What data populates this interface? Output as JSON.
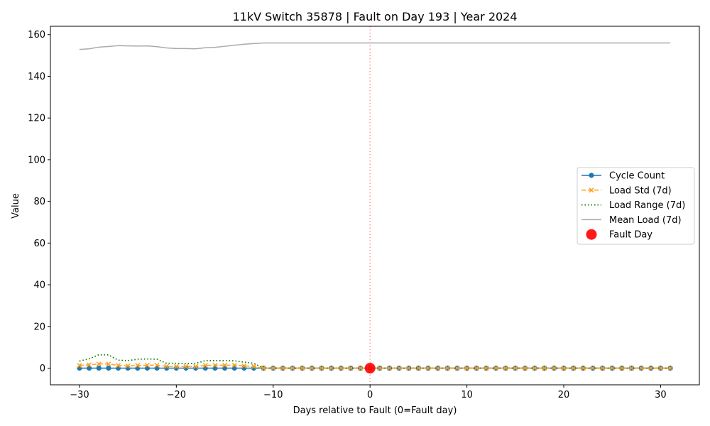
{
  "chart_data": {
    "type": "line",
    "title": "11kV Switch 35878 | Fault on Day 193 | Year 2024",
    "xlabel": "Days relative to Fault (0=Fault day)",
    "ylabel": "Value",
    "xlim": [
      -33,
      34
    ],
    "ylim": [
      -8,
      164
    ],
    "xticks": [
      -30,
      -20,
      -10,
      0,
      10,
      20,
      30
    ],
    "yticks": [
      0,
      20,
      40,
      60,
      80,
      100,
      120,
      140,
      160
    ],
    "grid": false,
    "legend_position": "center-right",
    "fault_line_x": 0,
    "x": [
      -30,
      -29,
      -28,
      -27,
      -26,
      -25,
      -24,
      -23,
      -22,
      -21,
      -20,
      -19,
      -18,
      -17,
      -16,
      -15,
      -14,
      -13,
      -12,
      -11,
      -10,
      -9,
      -8,
      -7,
      -6,
      -5,
      -4,
      -3,
      -2,
      -1,
      0,
      1,
      2,
      3,
      4,
      5,
      6,
      7,
      8,
      9,
      10,
      11,
      12,
      13,
      14,
      15,
      16,
      17,
      18,
      19,
      20,
      21,
      22,
      23,
      24,
      25,
      26,
      27,
      28,
      29,
      30,
      31
    ],
    "series": [
      {
        "name": "Cycle Count",
        "style": "solid-circle",
        "color": "#1f77b4",
        "values": [
          0,
          0,
          0,
          0,
          0,
          0,
          0,
          0,
          0,
          0,
          0,
          0,
          0,
          0,
          0,
          0,
          0,
          0,
          0,
          0,
          0,
          0,
          0,
          0,
          0,
          0,
          0,
          0,
          0,
          0,
          0,
          0,
          0,
          0,
          0,
          0,
          0,
          0,
          0,
          0,
          0,
          0,
          0,
          0,
          0,
          0,
          0,
          0,
          0,
          0,
          0,
          0,
          0,
          0,
          0,
          0,
          0,
          0,
          0,
          0,
          0,
          0
        ]
      },
      {
        "name": "Load Std (7d)",
        "style": "dashed-x",
        "color": "#ff9f1c",
        "values": [
          1.3,
          1.6,
          2.0,
          2.0,
          1.3,
          1.1,
          1.3,
          1.4,
          1.4,
          0.9,
          0.8,
          0.8,
          0.8,
          1.3,
          1.4,
          1.4,
          1.4,
          1.1,
          0.8,
          0,
          0,
          0,
          0,
          0,
          0,
          0,
          0,
          0,
          0,
          0,
          0,
          0,
          0,
          0,
          0,
          0,
          0,
          0,
          0,
          0,
          0,
          0,
          0,
          0,
          0,
          0,
          0,
          0,
          0,
          0,
          0,
          0,
          0,
          0,
          0,
          0,
          0,
          0,
          0,
          0,
          0,
          0
        ]
      },
      {
        "name": "Load Range (7d)",
        "style": "dotted",
        "color": "#008000",
        "values": [
          3.4,
          4.5,
          6.4,
          6.4,
          3.8,
          3.6,
          4.3,
          4.4,
          4.3,
          2.3,
          2.3,
          2.2,
          2.3,
          3.6,
          3.6,
          3.6,
          3.5,
          2.9,
          2.3,
          0,
          0,
          0,
          0,
          0,
          0,
          0,
          0,
          0,
          0,
          0,
          0,
          0,
          0,
          0,
          0,
          0,
          0,
          0,
          0,
          0,
          0,
          0,
          0,
          0,
          0,
          0,
          0,
          0,
          0,
          0,
          0,
          0,
          0,
          0,
          0,
          0,
          0,
          0,
          0,
          0,
          0,
          0
        ]
      },
      {
        "name": "Mean Load (7d)",
        "style": "solid",
        "color": "#aaaaaa",
        "values": [
          152.9,
          153.2,
          154.0,
          154.3,
          154.7,
          154.6,
          154.5,
          154.6,
          154.2,
          153.6,
          153.3,
          153.3,
          153.2,
          153.7,
          153.9,
          154.4,
          154.9,
          155.4,
          155.7,
          156.0,
          156,
          156,
          156,
          156,
          156,
          156,
          156,
          156,
          156,
          156,
          156,
          156,
          156,
          156,
          156,
          156,
          156,
          156,
          156,
          156,
          156,
          156,
          156,
          156,
          156,
          156,
          156,
          156,
          156,
          156,
          156,
          156,
          156,
          156,
          156,
          156,
          156,
          156,
          156,
          156,
          156,
          156
        ]
      }
    ],
    "fault_point": {
      "name": "Fault Day",
      "x": 0,
      "y": 0,
      "color": "#ff0000"
    }
  }
}
